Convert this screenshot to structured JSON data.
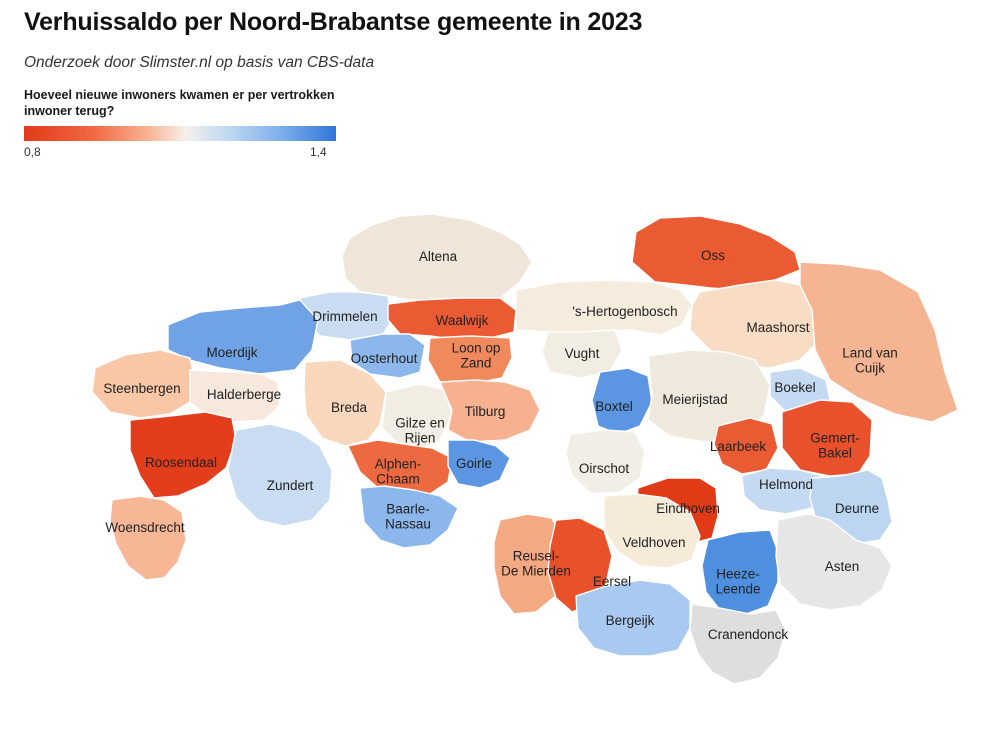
{
  "header": {
    "title": "Verhuissaldo per Noord-Brabantse gemeente in 2023",
    "subtitle": "Onderzoek door Slimster.nl op basis van CBS-data"
  },
  "legend": {
    "title": "Hoeveel nieuwe inwoners kwamen er per vertrokken inwoner terug?",
    "min_label": "0,8",
    "max_label": "1,4",
    "min_value": 0.8,
    "max_value": 1.4,
    "colors": [
      "#e23a1a",
      "#f06840",
      "#f7b494",
      "#f4f1ec",
      "#bcd7f1",
      "#7fb0ec",
      "#2f76d9"
    ]
  },
  "map": {
    "region": "Noord-Brabant",
    "municipalities": [
      {
        "label": "Altena",
        "color": "#efe6d9"
      },
      {
        "label": "Oss",
        "color": "#ea5a33"
      },
      {
        "label": "Drimmelen",
        "color": "#c9dcf2"
      },
      {
        "label": "Waalwijk",
        "color": "#ea5a33"
      },
      {
        "label": "'s-Hertogenbosch",
        "color": "#f6ecdd"
      },
      {
        "label": "Maashorst",
        "color": "#f8dcc4"
      },
      {
        "label": "Moerdijk",
        "color": "#6fa3e6"
      },
      {
        "label": "Oosterhout",
        "color": "#8cb7ec"
      },
      {
        "label": "Loon op Zand",
        "color": "#f08a5c"
      },
      {
        "label": "Vught",
        "color": "#f2ede3"
      },
      {
        "label": "Land van Cuijk",
        "color": "#f6b592"
      },
      {
        "label": "Steenbergen",
        "color": "#f9c6a6"
      },
      {
        "label": "Halderberge",
        "color": "#f6e8dc"
      },
      {
        "label": "Breda",
        "color": "#f9d7bd"
      },
      {
        "label": "Gilze en Rijen",
        "color": "#f2ede3"
      },
      {
        "label": "Tilburg",
        "color": "#f7b190"
      },
      {
        "label": "Boxtel",
        "color": "#5c96e2"
      },
      {
        "label": "Meierijstad",
        "color": "#efe8dc"
      },
      {
        "label": "Boekel",
        "color": "#c4daf3"
      },
      {
        "label": "Roosendaal",
        "color": "#e33d1b"
      },
      {
        "label": "Alphen-Chaam",
        "color": "#ed6a40"
      },
      {
        "label": "Goirle",
        "color": "#5c96e2"
      },
      {
        "label": "Oirschot",
        "color": "#f1eee6"
      },
      {
        "label": "Laarbeek",
        "color": "#ea5a33"
      },
      {
        "label": "Gemert-Bakel",
        "color": "#e8512b"
      },
      {
        "label": "Zundert",
        "color": "#c9dcf2"
      },
      {
        "label": "Helmond",
        "color": "#c4daf3"
      },
      {
        "label": "Baarle-Nassau",
        "color": "#8cb7ec"
      },
      {
        "label": "Eindhoven",
        "color": "#e13a16"
      },
      {
        "label": "Deurne",
        "color": "#bcd6f2"
      },
      {
        "label": "Woensdrecht",
        "color": "#f7b796"
      },
      {
        "label": "Reusel-De Mierden",
        "color": "#f4a982"
      },
      {
        "label": "Veldhoven",
        "color": "#f6ead9"
      },
      {
        "label": "Eersel",
        "color": "#e9512a"
      },
      {
        "label": "Heeze-Leende",
        "color": "#4f8fe0"
      },
      {
        "label": "Asten",
        "color": "#e6e6e6"
      },
      {
        "label": "Bergeijk",
        "color": "#a8c9f0"
      },
      {
        "label": "Cranendonck",
        "color": "#dedede"
      }
    ]
  }
}
